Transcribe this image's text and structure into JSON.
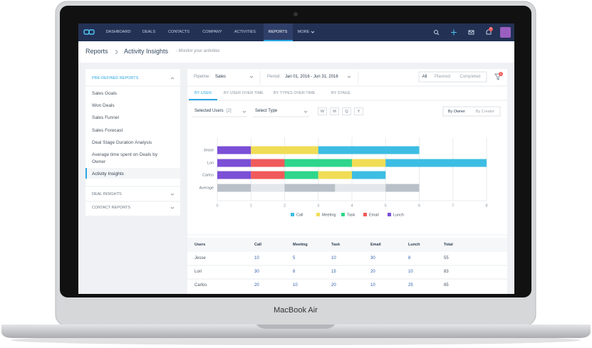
{
  "device": {
    "label": "MacBook Air"
  },
  "nav": {
    "items": [
      "DASHBOARD",
      "DEALS",
      "CONTACTS",
      "COMPANY",
      "ACTIVITIES",
      "REPORTS",
      "MORE"
    ],
    "active": 5,
    "notification_count": "3"
  },
  "breadcrumb": {
    "parent": "Reports",
    "current": "Activity Insights",
    "subtitle": "- Monitor your activities"
  },
  "sidebar": {
    "sections": [
      {
        "title": "PRE-DEFINED REPORTS",
        "items": [
          "Sales Goals",
          "Won Deals",
          "Sales Funnel",
          "Sales Forecast",
          "Deal Stage Duration Analysis",
          "Average time spent on Deals by Owner",
          "Activity Insights"
        ],
        "selected": 6
      },
      {
        "title": "DEAL INSIGHTS"
      },
      {
        "title": "CONTACT REPORTS"
      }
    ]
  },
  "filters": {
    "pipeline_label": "Pipeline:",
    "pipeline": "Sales",
    "period_label": "Period:",
    "period": "Jan 01, 2016 - Jun 31, 2016",
    "status": [
      "All",
      "Planned",
      "Completed"
    ],
    "status_active": 0,
    "filter_count": "2"
  },
  "tabs": {
    "items": [
      "BY USER",
      "BY USER OVER TIME",
      "BY TYPES OVER TIME",
      "BY STAGE"
    ],
    "active": 0
  },
  "controls": {
    "users": "Selected Users",
    "users_count": "[2]",
    "type": "Select Type",
    "periods": [
      "W",
      "M",
      "Q",
      "Y"
    ],
    "owner": [
      "By Owner",
      "By Creator"
    ],
    "owner_active": 0
  },
  "chart_data": {
    "type": "bar",
    "orientation": "horizontal",
    "stacked": true,
    "categories": [
      "Jesse",
      "Lori",
      "Carlos",
      "Average"
    ],
    "series": [
      {
        "name": "Call",
        "color": "#3dbde3",
        "values": [
          3,
          3,
          1,
          1
        ]
      },
      {
        "name": "Meeting",
        "color": "#f0dd55",
        "values": [
          2,
          1,
          1,
          1.5
        ]
      },
      {
        "name": "Task",
        "color": "#2fd68c",
        "values": [
          0,
          2,
          1,
          1.5
        ]
      },
      {
        "name": "Email",
        "color": "#f05a5a",
        "values": [
          0,
          1,
          1,
          1
        ]
      },
      {
        "name": "Lunch",
        "color": "#7b4fd6",
        "values": [
          1,
          1,
          1,
          1
        ]
      }
    ],
    "muted_categories": [
      "Average"
    ],
    "muted_colors": [
      "#b9c0c8",
      "#e4e7eb"
    ],
    "xlim": [
      0,
      8
    ],
    "xticks": [
      0,
      1,
      2,
      3,
      4,
      5,
      6,
      7,
      8
    ],
    "grid": true,
    "legend": "bottom"
  },
  "table": {
    "columns": [
      "Users",
      "Call",
      "Meeting",
      "Task",
      "Email",
      "Lunch",
      "Total"
    ],
    "rows": [
      [
        "Jesse",
        10,
        5,
        10,
        30,
        8,
        55
      ],
      [
        "Lori",
        30,
        8,
        15,
        20,
        10,
        83
      ],
      [
        "Carlos",
        20,
        10,
        20,
        10,
        25,
        85
      ]
    ]
  }
}
